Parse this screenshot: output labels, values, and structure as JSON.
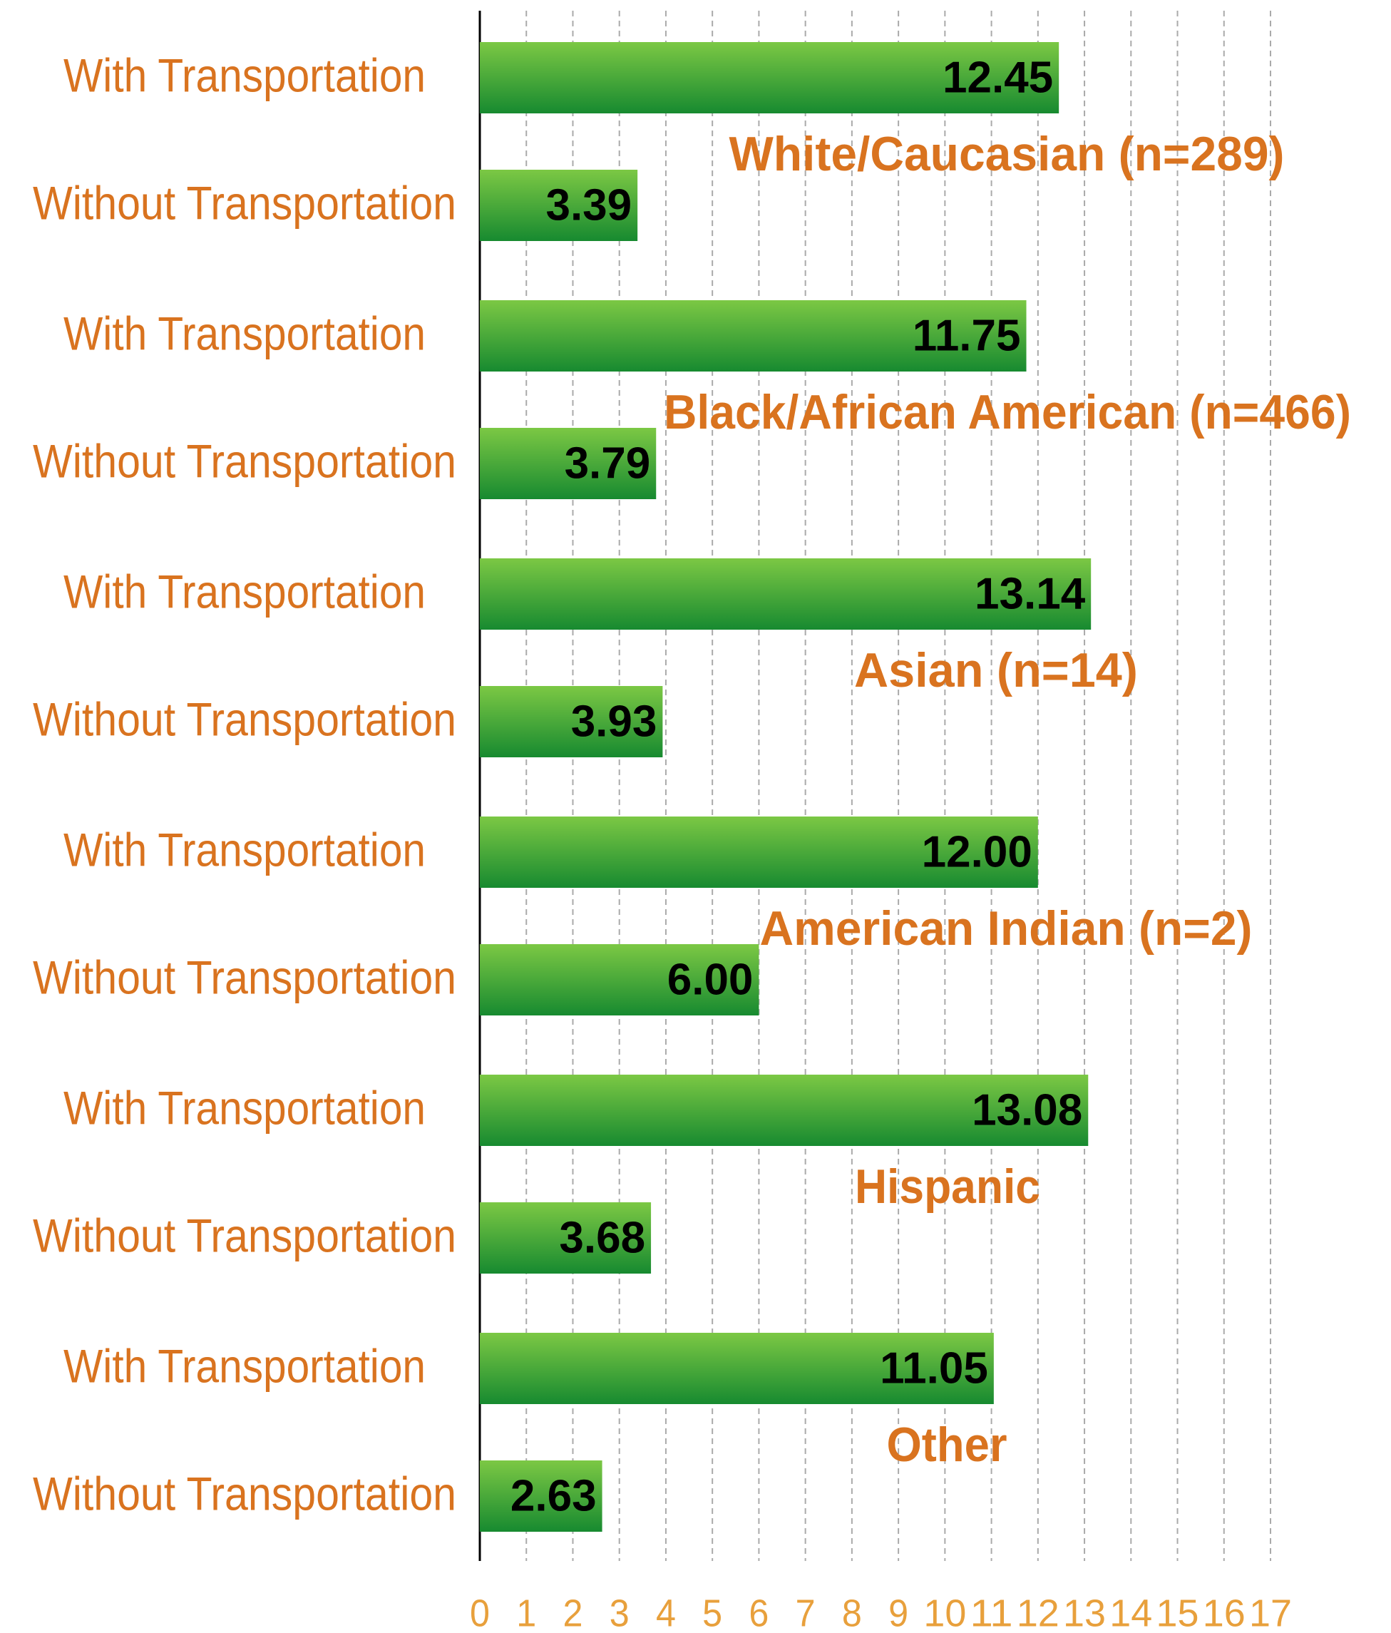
{
  "chart_data": {
    "type": "hbar",
    "categories": [
      "With Transportation",
      "Without Transportation",
      "With Transportation",
      "Without Transportation",
      "With Transportation",
      "Without Transportation",
      "With Transportation",
      "Without Transportation",
      "With Transportation",
      "Without Transportation",
      "With Transportation",
      "Without Transportation"
    ],
    "values": [
      12.45,
      3.39,
      11.75,
      3.79,
      13.14,
      3.93,
      12,
      6,
      13.08,
      3.68,
      11.05,
      2.63
    ],
    "value_labels": [
      "12.45",
      "3.39",
      "11.75",
      "3.79",
      "13.14",
      "3.93",
      "12.00",
      "6.00",
      "13.08",
      "3.68",
      "11.05",
      "2.63"
    ],
    "group_labels": [
      "White/Caucasian (n=289)",
      "Black/African American (n=466)",
      "Asian (n=14)",
      "American Indian (n=2)",
      "Hispanic",
      "Other"
    ],
    "color": "#3aa63a",
    "xlim": [
      0,
      17
    ],
    "xticks": [
      0,
      1,
      2,
      3,
      4,
      5,
      6,
      7,
      8,
      9,
      10,
      11,
      12,
      13,
      14,
      15,
      16,
      17
    ],
    "grid": true
  }
}
